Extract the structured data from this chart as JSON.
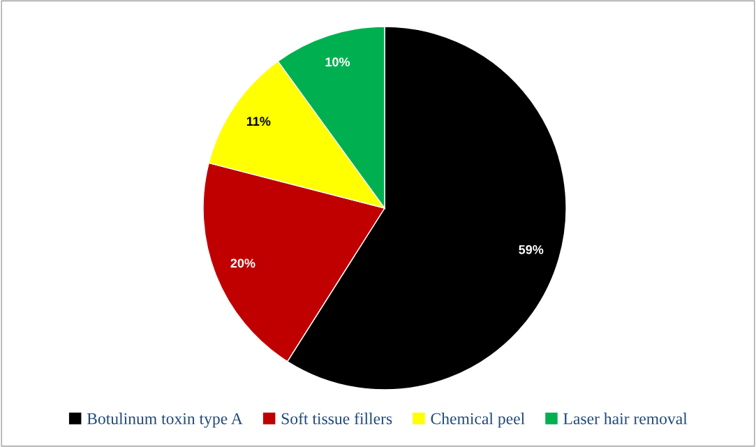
{
  "chart_data": {
    "type": "pie",
    "categories": [
      "Botulinum toxin type A",
      "Soft tissue fillers",
      "Chemical peel",
      "Laser hair removal"
    ],
    "values": [
      59,
      20,
      11,
      10
    ],
    "colors": [
      "#000000",
      "#c00000",
      "#ffff00",
      "#00b050"
    ],
    "value_labels": [
      "59%",
      "20%",
      "11%",
      "10%"
    ],
    "legend": "bottom"
  }
}
